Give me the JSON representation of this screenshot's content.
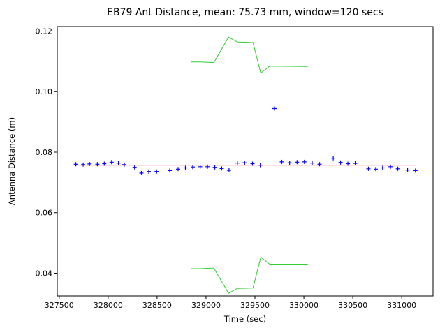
{
  "chart_data": {
    "type": "line+scatter",
    "title": "EB79 Ant Distance, mean: 75.73 mm, window=120 secs",
    "xlabel": "Time (sec)",
    "ylabel": "Antenna Distance (m)",
    "xlim": [
      327480,
      331320
    ],
    "ylim": [
      0.0325,
      0.1215
    ],
    "xticks": [
      327500,
      328000,
      328500,
      329000,
      329500,
      330000,
      330500,
      331000
    ],
    "xtick_labels": [
      "327500",
      "328000",
      "328500",
      "329000",
      "329500",
      "330000",
      "330500",
      "331000"
    ],
    "yticks": [
      0.04,
      0.06,
      0.08,
      0.1,
      0.12
    ],
    "ytick_labels": [
      "0.04",
      "0.06",
      "0.08",
      "0.10",
      "0.12"
    ],
    "grid": false,
    "legend": "none",
    "frame_color": "#000000",
    "mean_value_mm": "75.73",
    "window_secs": "120",
    "series": [
      {
        "name": "antenna-distance-points",
        "type": "scatter",
        "marker": "+",
        "color": "#0000ff",
        "x": [
          327670,
          327745,
          327810,
          327890,
          327960,
          328035,
          328105,
          328165,
          328270,
          328340,
          328415,
          328495,
          328630,
          328715,
          328790,
          328865,
          328940,
          329015,
          329090,
          329160,
          329235,
          329320,
          329395,
          329475,
          329555,
          329700,
          329775,
          329855,
          329930,
          330005,
          330085,
          330160,
          330300,
          330375,
          330450,
          330525,
          330660,
          330735,
          330805,
          330885,
          330960,
          331060,
          331140
        ],
        "y": [
          0.076,
          0.0759,
          0.0761,
          0.076,
          0.0762,
          0.0767,
          0.0764,
          0.0759,
          0.075,
          0.0731,
          0.0736,
          0.0736,
          0.0739,
          0.0744,
          0.0748,
          0.0751,
          0.0752,
          0.0752,
          0.075,
          0.0746,
          0.074,
          0.0764,
          0.0765,
          0.0762,
          0.0757,
          0.0944,
          0.0768,
          0.0765,
          0.0767,
          0.0768,
          0.0764,
          0.076,
          0.078,
          0.0766,
          0.0762,
          0.0763,
          0.0745,
          0.0744,
          0.0748,
          0.0752,
          0.0745,
          0.0741,
          0.0739
        ]
      },
      {
        "name": "mean-line",
        "type": "line",
        "color": "#ff0000",
        "x": [
          327670,
          331140
        ],
        "y": [
          0.0757,
          0.0757
        ]
      },
      {
        "name": "upper-window-band",
        "type": "line",
        "color": "#32cd32",
        "x": [
          328850,
          328940,
          329080,
          329230,
          329320,
          329480,
          329560,
          329650,
          330040
        ],
        "y": [
          0.1098,
          0.1098,
          0.1096,
          0.118,
          0.1164,
          0.1162,
          0.1061,
          0.1084,
          0.1083
        ]
      },
      {
        "name": "lower-window-band",
        "type": "line",
        "color": "#32cd32",
        "x": [
          328850,
          328940,
          329080,
          329230,
          329320,
          329480,
          329560,
          329650,
          330040
        ],
        "y": [
          0.0415,
          0.0415,
          0.0417,
          0.0334,
          0.035,
          0.0351,
          0.0453,
          0.043,
          0.043
        ]
      }
    ]
  }
}
